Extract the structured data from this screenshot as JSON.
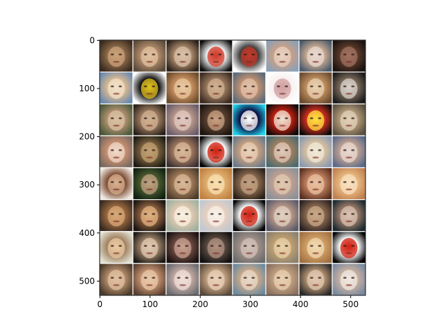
{
  "image": {
    "description_grid": {
      "rows": 8,
      "cols": 8
    },
    "tile_palettes": [
      [
        "#3b2a1d",
        "#8a6a4a",
        "#c9a27a"
      ],
      [
        "#5a4a3a",
        "#b08a6a",
        "#e0c0a0"
      ],
      [
        "#2b2118",
        "#a8876a",
        "#d8c0a8"
      ],
      [
        "#0a0a0a",
        "#f2f2f2",
        "#d23a2a"
      ],
      [
        "#ffffff",
        "#3a3a3a",
        "#c23a2a"
      ],
      [
        "#8aa0b8",
        "#c8a088",
        "#e8d0c0"
      ],
      [
        "#4a5a6a",
        "#c8a890",
        "#e8d8d0"
      ],
      [
        "#1a1210",
        "#5a3a2a",
        "#a07060"
      ],
      [
        "#6a8ab0",
        "#d8b890",
        "#f0e0c8"
      ],
      [
        "#ffffff",
        "#0a0a0a",
        "#e0c020"
      ],
      [
        "#6a4a2a",
        "#c89060",
        "#e8c8a0"
      ],
      [
        "#3a2a20",
        "#9a7a60",
        "#d0b090"
      ],
      [
        "#5a6a7a",
        "#c09070",
        "#e0c0a8"
      ],
      [
        "#ffffff",
        "#f8f0f0",
        "#d0a0a0"
      ],
      [
        "#6a4a30",
        "#c09060",
        "#e8d0b0"
      ],
      [
        "#1a1a1a",
        "#7a6a5a",
        "#d8d0c8"
      ],
      [
        "#4a5a3a",
        "#b09070",
        "#d8c0a0"
      ],
      [
        "#2a2018",
        "#9a7a60",
        "#d0b090"
      ],
      [
        "#6a5a6a",
        "#b89888",
        "#e0c8c0"
      ],
      [
        "#1a1410",
        "#5a4030",
        "#c8a080"
      ],
      [
        "#20d0e8",
        "#0a0a40",
        "#ffffff"
      ],
      [
        "#0a0a0a",
        "#c02010",
        "#f0e0d0"
      ],
      [
        "#0a0a0a",
        "#d03020",
        "#ffe040"
      ],
      [
        "#5a5040",
        "#b09878",
        "#e0d0b8"
      ],
      [
        "#7a6a60",
        "#c89070",
        "#f0d8c8"
      ],
      [
        "#1a1a10",
        "#7a6040",
        "#c0a070"
      ],
      [
        "#3a3030",
        "#a07860",
        "#d8b898"
      ],
      [
        "#000000",
        "#ffffff",
        "#d02010"
      ],
      [
        "#6a7a8a",
        "#c8a080",
        "#e8d0b8"
      ],
      [
        "#4a6a70",
        "#a08060",
        "#e0c8b8"
      ],
      [
        "#8a9ab0",
        "#d8c0a0",
        "#f0e8d8"
      ],
      [
        "#5a6a8a",
        "#c0a090",
        "#e8d8d0"
      ],
      [
        "#f0e8e0",
        "#7a4a30",
        "#d8b090"
      ],
      [
        "#102010",
        "#4a5a30",
        "#c0a080"
      ],
      [
        "#4a3a2a",
        "#a07a58",
        "#d8b898"
      ],
      [
        "#c08040",
        "#e0b070",
        "#f8e0b0"
      ],
      [
        "#2a2018",
        "#8a6a50",
        "#c0a080"
      ],
      [
        "#8a9098",
        "#c0a090",
        "#e0c8b0"
      ],
      [
        "#5a3020",
        "#c08060",
        "#e8c0a0"
      ],
      [
        "#c08050",
        "#e8b880",
        "#f8e0c0"
      ],
      [
        "#3a2a20",
        "#9a6a40",
        "#d8a878"
      ],
      [
        "#1a1410",
        "#8a6040",
        "#e0b080"
      ],
      [
        "#a0b0a0",
        "#e0c8b0",
        "#f8f0e0"
      ],
      [
        "#c0c8d0",
        "#e8d0c0",
        "#f8f0e8"
      ],
      [
        "#000000",
        "#ffffff",
        "#d02010"
      ],
      [
        "#5a5a6a",
        "#b89888",
        "#e0d0c0"
      ],
      [
        "#2a2020",
        "#8a6a50",
        "#c8a888"
      ],
      [
        "#1a2a30",
        "#9a7a68",
        "#d8c0b0"
      ],
      [
        "#e0e0d0",
        "#a08060",
        "#e8c8a0"
      ],
      [
        "#1a1814",
        "#9a8068",
        "#e0c8b0"
      ],
      [
        "#1a1010",
        "#6a4a40",
        "#c8a090"
      ],
      [
        "#101010",
        "#5a4a40",
        "#b09080"
      ],
      [
        "#6a6a6a",
        "#a09088",
        "#d0c0b8"
      ],
      [
        "#8a8070",
        "#c0a070",
        "#e8d0a8"
      ],
      [
        "#a07040",
        "#d0a068",
        "#f0d8b0"
      ],
      [
        "#000000",
        "#ffffff",
        "#d02010"
      ],
      [
        "#4a3a2a",
        "#b08a6a",
        "#e0c0a0"
      ],
      [
        "#5a4030",
        "#c09070",
        "#e8c8a8"
      ],
      [
        "#6a6a70",
        "#c0a8a0",
        "#f0e0d8"
      ],
      [
        "#5a4a3a",
        "#c0a080",
        "#e8d0b8"
      ],
      [
        "#6a8aa0",
        "#c8a888",
        "#e8d8c8"
      ],
      [
        "#8a7060",
        "#c0a080",
        "#e8d0b0"
      ],
      [
        "#2a2a2a",
        "#b09070",
        "#e0c8b0"
      ],
      [
        "#7a8aa0",
        "#c8b0a0",
        "#f0e8e0"
      ]
    ]
  },
  "axes": {
    "x_ticks": [
      "0",
      "100",
      "200",
      "300",
      "400",
      "500"
    ],
    "x_tick_values": [
      0,
      100,
      200,
      300,
      400,
      500
    ],
    "y_ticks": [
      "0",
      "100",
      "200",
      "300",
      "400",
      "500"
    ],
    "y_tick_values": [
      0,
      100,
      200,
      300,
      400,
      500
    ],
    "xlim": [
      -0.5,
      529.5
    ],
    "ylim": [
      529.5,
      -0.5
    ]
  }
}
